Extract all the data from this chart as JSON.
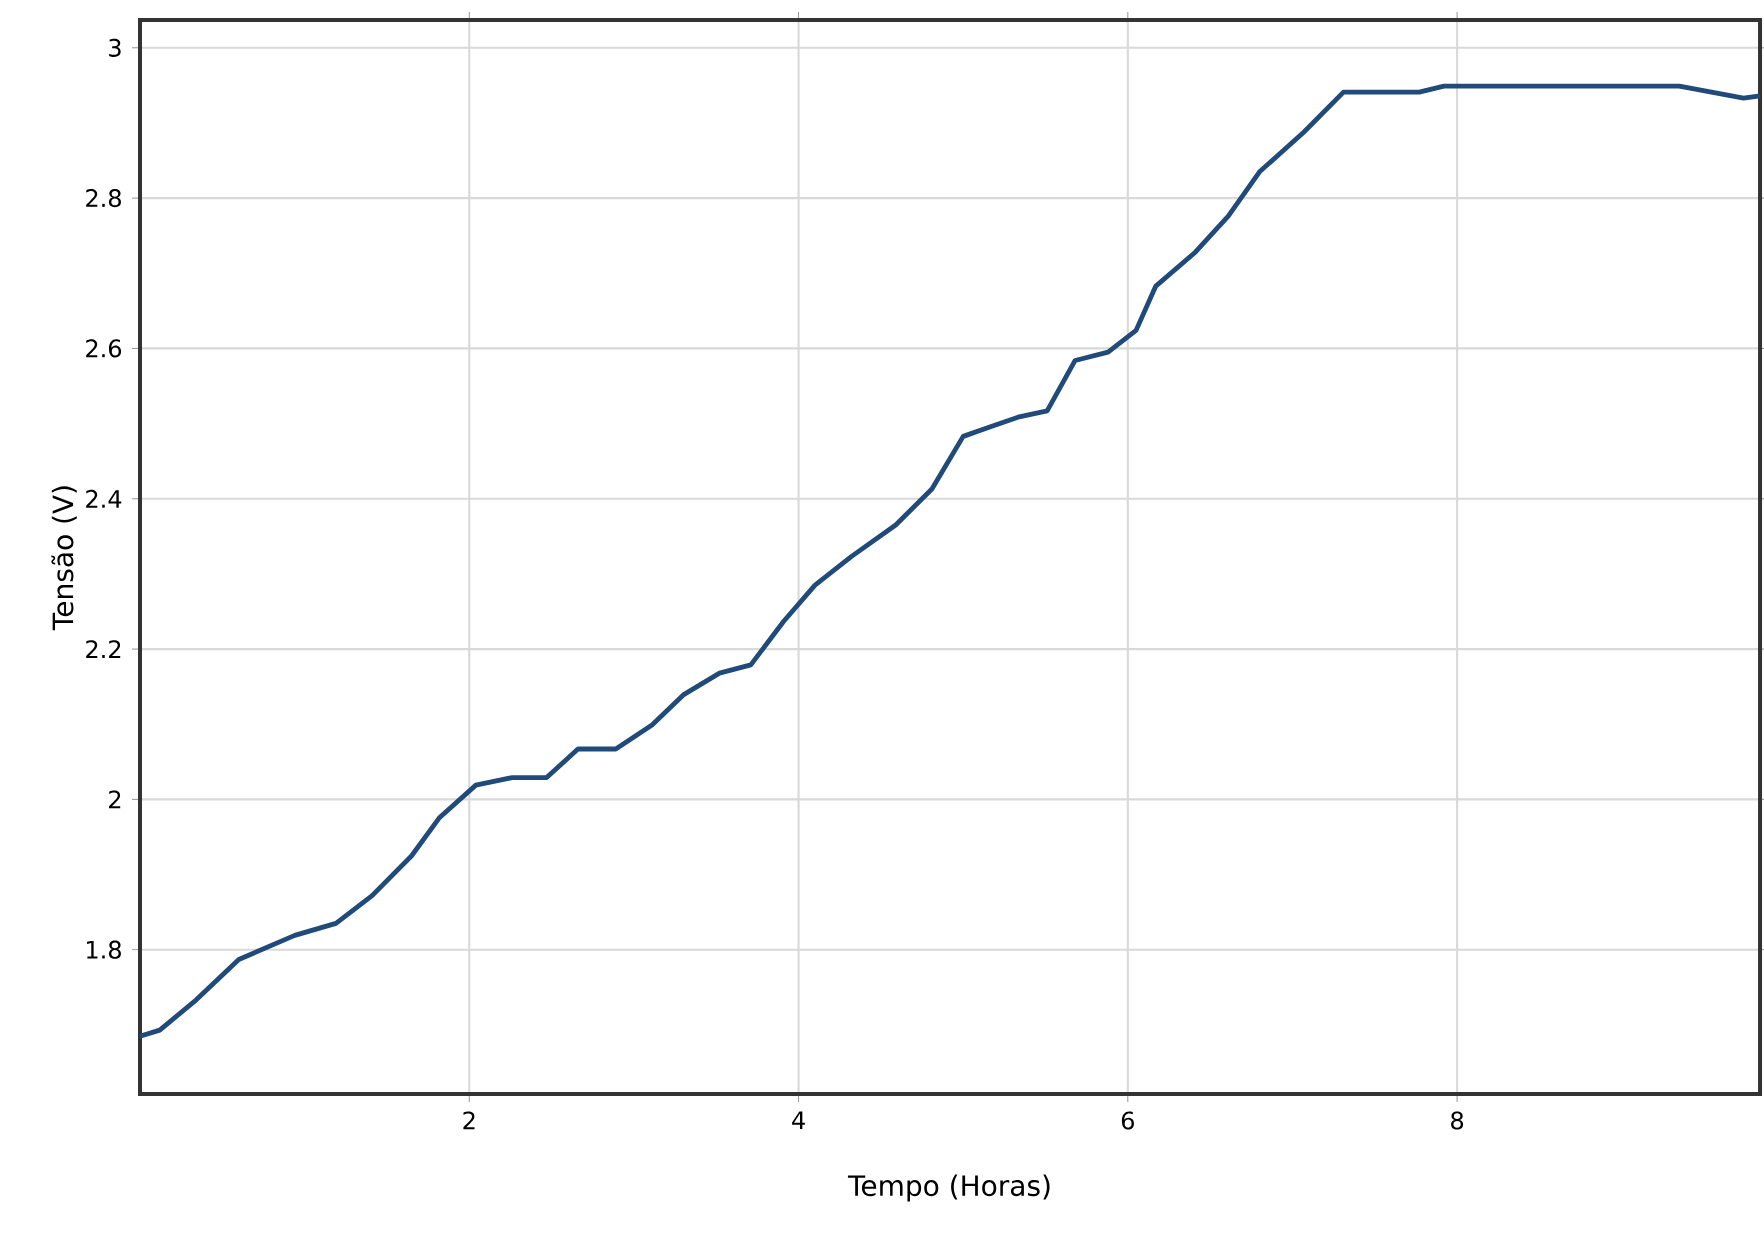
{
  "chart_data": {
    "type": "line",
    "xlabel": "Tempo (Horas)",
    "ylabel": "Tensão (V)",
    "x": [
      0.0,
      0.12,
      0.34,
      0.6,
      0.94,
      1.19,
      1.41,
      1.65,
      1.82,
      2.04,
      2.26,
      2.47,
      2.66,
      2.89,
      3.11,
      3.3,
      3.52,
      3.71,
      3.91,
      4.1,
      4.32,
      4.59,
      4.81,
      5.0,
      5.17,
      5.34,
      5.51,
      5.68,
      5.88,
      6.05,
      6.17,
      6.41,
      6.61,
      6.8,
      7.07,
      7.31,
      7.77,
      7.92,
      8.35,
      9.35,
      9.74,
      9.84
    ],
    "series": [
      {
        "color": "#1f4a7a",
        "values": [
          1.685,
          1.693,
          1.733,
          1.787,
          1.819,
          1.835,
          1.872,
          1.925,
          1.976,
          2.019,
          2.029,
          2.029,
          2.067,
          2.067,
          2.099,
          2.139,
          2.168,
          2.179,
          2.237,
          2.285,
          2.323,
          2.365,
          2.413,
          2.483,
          2.496,
          2.509,
          2.517,
          2.584,
          2.595,
          2.624,
          2.683,
          2.728,
          2.776,
          2.835,
          2.888,
          2.941,
          2.941,
          2.949,
          2.949,
          2.949,
          2.933,
          2.936
        ]
      }
    ],
    "xlim": [
      0,
      9.84
    ],
    "ylim": [
      1.608,
      3.037
    ],
    "xticks": [
      2,
      4,
      6,
      8
    ],
    "yticks": [
      1.8,
      2,
      2.2,
      2.4,
      2.6,
      2.8,
      3
    ],
    "grid": true,
    "marker": "none",
    "line_style": "solid"
  }
}
